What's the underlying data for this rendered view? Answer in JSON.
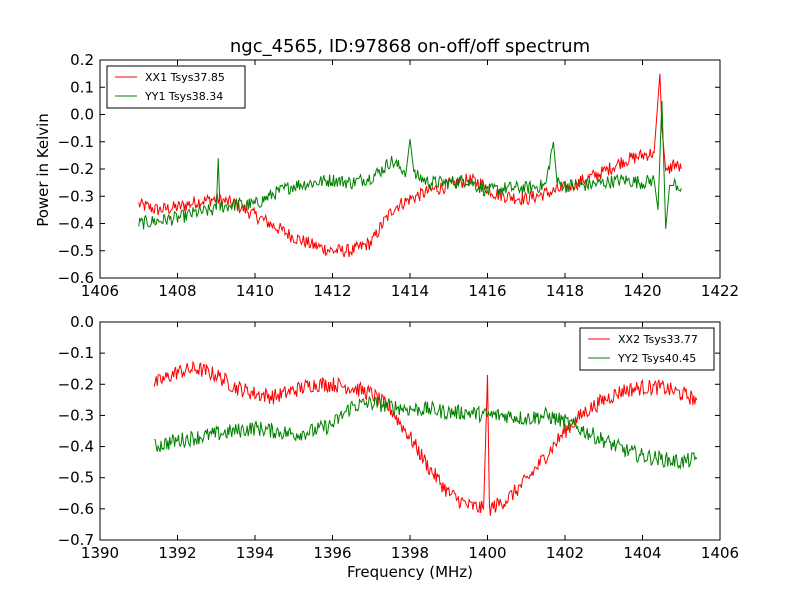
{
  "figure": {
    "title": "ngc_4565, ID:97868 on-off/off spectrum",
    "ylabel": "Power in Kelvin",
    "xlabel": "Frequency (MHz)"
  },
  "chart_data": [
    {
      "type": "line",
      "title": "ngc_4565, ID:97868 on-off/off spectrum",
      "ylabel": "Power in Kelvin",
      "xlabel": "",
      "xlim": [
        1406,
        1422
      ],
      "ylim": [
        -0.6,
        0.2
      ],
      "xticks": [
        1406,
        1408,
        1410,
        1412,
        1414,
        1416,
        1418,
        1420,
        1422
      ],
      "yticks": [
        -0.6,
        -0.5,
        -0.4,
        -0.3,
        -0.2,
        -0.1,
        0.0,
        0.1,
        0.2
      ],
      "grid": false,
      "legend_position": "top-left",
      "series": [
        {
          "name": "XX1 Tsys37.85",
          "color": "#ff0000",
          "x": [
            1407.0,
            1407.5,
            1408.0,
            1408.5,
            1409.0,
            1409.5,
            1410.0,
            1410.5,
            1411.0,
            1411.5,
            1412.0,
            1412.5,
            1413.0,
            1413.3,
            1413.6,
            1414.0,
            1414.5,
            1415.0,
            1415.5,
            1415.8,
            1416.2,
            1416.5,
            1417.0,
            1417.5,
            1418.0,
            1418.5,
            1419.0,
            1419.5,
            1420.0,
            1420.3,
            1420.45,
            1420.5,
            1420.6,
            1420.8,
            1421.0
          ],
          "y": [
            -0.33,
            -0.35,
            -0.34,
            -0.32,
            -0.31,
            -0.33,
            -0.37,
            -0.41,
            -0.45,
            -0.48,
            -0.5,
            -0.5,
            -0.47,
            -0.4,
            -0.34,
            -0.31,
            -0.28,
            -0.26,
            -0.24,
            -0.25,
            -0.29,
            -0.3,
            -0.31,
            -0.29,
            -0.27,
            -0.24,
            -0.21,
            -0.17,
            -0.15,
            -0.14,
            0.15,
            -0.05,
            -0.22,
            -0.18,
            -0.2
          ]
        },
        {
          "name": "YY1 Tsys38.34",
          "color": "#008000",
          "x": [
            1407.0,
            1407.5,
            1408.0,
            1408.5,
            1409.0,
            1409.05,
            1409.1,
            1409.5,
            1410.0,
            1410.5,
            1411.0,
            1411.5,
            1412.0,
            1412.5,
            1413.0,
            1413.3,
            1413.5,
            1413.9,
            1414.0,
            1414.1,
            1414.5,
            1415.0,
            1415.5,
            1415.7,
            1416.0,
            1416.5,
            1417.0,
            1417.5,
            1417.7,
            1417.8,
            1418.0,
            1418.5,
            1419.0,
            1419.5,
            1420.0,
            1420.3,
            1420.4,
            1420.5,
            1420.6,
            1420.7,
            1420.8,
            1421.0
          ],
          "y": [
            -0.4,
            -0.39,
            -0.38,
            -0.36,
            -0.35,
            -0.16,
            -0.34,
            -0.33,
            -0.33,
            -0.29,
            -0.26,
            -0.25,
            -0.24,
            -0.25,
            -0.23,
            -0.2,
            -0.17,
            -0.21,
            -0.09,
            -0.22,
            -0.25,
            -0.25,
            -0.24,
            -0.26,
            -0.28,
            -0.27,
            -0.27,
            -0.26,
            -0.1,
            -0.25,
            -0.26,
            -0.26,
            -0.25,
            -0.24,
            -0.25,
            -0.24,
            -0.35,
            0.05,
            -0.42,
            -0.26,
            -0.25,
            -0.27
          ]
        }
      ]
    },
    {
      "type": "line",
      "title": "",
      "ylabel": "",
      "xlabel": "Frequency (MHz)",
      "xlim": [
        1390,
        1406
      ],
      "ylim": [
        -0.7,
        0.0
      ],
      "xticks": [
        1390,
        1392,
        1394,
        1396,
        1398,
        1400,
        1402,
        1404,
        1406
      ],
      "yticks": [
        -0.7,
        -0.6,
        -0.5,
        -0.4,
        -0.3,
        -0.2,
        -0.1,
        0.0
      ],
      "grid": false,
      "legend_position": "top-right",
      "series": [
        {
          "name": "XX2 Tsys33.77",
          "color": "#ff0000",
          "x": [
            1391.4,
            1392.0,
            1392.5,
            1393.0,
            1393.5,
            1394.0,
            1394.5,
            1395.0,
            1395.5,
            1396.0,
            1396.5,
            1397.0,
            1397.5,
            1398.0,
            1398.5,
            1399.0,
            1399.5,
            1399.9,
            1400.0,
            1400.05,
            1400.5,
            1401.0,
            1401.5,
            1402.0,
            1402.5,
            1403.0,
            1403.5,
            1404.0,
            1404.5,
            1405.0,
            1405.4
          ],
          "y": [
            -0.2,
            -0.16,
            -0.15,
            -0.17,
            -0.21,
            -0.23,
            -0.24,
            -0.22,
            -0.2,
            -0.2,
            -0.21,
            -0.23,
            -0.28,
            -0.37,
            -0.47,
            -0.55,
            -0.59,
            -0.6,
            -0.17,
            -0.6,
            -0.57,
            -0.51,
            -0.43,
            -0.35,
            -0.29,
            -0.25,
            -0.22,
            -0.21,
            -0.21,
            -0.23,
            -0.25
          ]
        },
        {
          "name": "YY2 Tsys40.45",
          "color": "#008000",
          "x": [
            1391.4,
            1392.0,
            1392.5,
            1393.0,
            1393.5,
            1394.0,
            1394.5,
            1395.0,
            1395.5,
            1396.0,
            1396.5,
            1397.0,
            1397.5,
            1398.0,
            1398.5,
            1399.0,
            1399.5,
            1400.0,
            1400.5,
            1401.0,
            1401.5,
            1402.0,
            1402.5,
            1403.0,
            1403.5,
            1404.0,
            1404.5,
            1405.0,
            1405.4
          ],
          "y": [
            -0.4,
            -0.38,
            -0.37,
            -0.36,
            -0.35,
            -0.34,
            -0.35,
            -0.36,
            -0.35,
            -0.33,
            -0.27,
            -0.26,
            -0.27,
            -0.28,
            -0.28,
            -0.29,
            -0.29,
            -0.3,
            -0.3,
            -0.31,
            -0.3,
            -0.32,
            -0.35,
            -0.38,
            -0.41,
            -0.43,
            -0.44,
            -0.45,
            -0.44
          ]
        }
      ]
    }
  ]
}
